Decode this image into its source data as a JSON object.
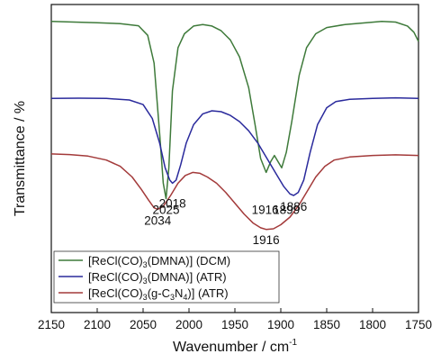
{
  "chart_data": {
    "type": "line",
    "xlabel": "Wavenumber / cm",
    "xlabel_sup": "-1",
    "ylabel": "Transmittance / %",
    "xlim": [
      2150,
      1750
    ],
    "x_reversed": true,
    "x_ticks": [
      2150,
      2100,
      2050,
      2000,
      1950,
      1900,
      1850,
      1800,
      1750
    ],
    "y_ticks_shown": false,
    "grid": false,
    "legend_position": "bottom-left",
    "colors": {
      "dcm": "#3e7a3a",
      "atr_dmna": "#2a2a9c",
      "atr_gc3n4": "#a33a3a"
    },
    "series": [
      {
        "key": "dcm",
        "legend": {
          "a": "[ReCl(CO)",
          "sub1": "3",
          "b": "(DMNA)] (DCM)"
        },
        "color": "#3e7a3a",
        "peaks": [
          2025,
          1916,
          1899
        ],
        "points": [
          [
            2150,
            0.945
          ],
          [
            2125,
            0.943
          ],
          [
            2100,
            0.941
          ],
          [
            2075,
            0.938
          ],
          [
            2055,
            0.931
          ],
          [
            2045,
            0.9
          ],
          [
            2038,
            0.81
          ],
          [
            2032,
            0.58
          ],
          [
            2028,
            0.42
          ],
          [
            2025,
            0.37
          ],
          [
            2022,
            0.47
          ],
          [
            2018,
            0.72
          ],
          [
            2012,
            0.86
          ],
          [
            2005,
            0.905
          ],
          [
            1995,
            0.93
          ],
          [
            1985,
            0.935
          ],
          [
            1975,
            0.93
          ],
          [
            1965,
            0.915
          ],
          [
            1955,
            0.885
          ],
          [
            1945,
            0.83
          ],
          [
            1935,
            0.73
          ],
          [
            1928,
            0.61
          ],
          [
            1922,
            0.5
          ],
          [
            1916,
            0.455
          ],
          [
            1911,
            0.49
          ],
          [
            1907,
            0.51
          ],
          [
            1903,
            0.49
          ],
          [
            1899,
            0.47
          ],
          [
            1894,
            0.52
          ],
          [
            1888,
            0.62
          ],
          [
            1880,
            0.77
          ],
          [
            1872,
            0.86
          ],
          [
            1862,
            0.905
          ],
          [
            1850,
            0.925
          ],
          [
            1830,
            0.935
          ],
          [
            1810,
            0.94
          ],
          [
            1790,
            0.945
          ],
          [
            1775,
            0.943
          ],
          [
            1762,
            0.93
          ],
          [
            1755,
            0.91
          ],
          [
            1750,
            0.88
          ]
        ]
      },
      {
        "key": "atr_dmna",
        "legend": {
          "a": "[ReCl(CO)",
          "sub1": "3",
          "b": "(DMNA)] (ATR)"
        },
        "color": "#2a2a9c",
        "peaks": [
          2018,
          1886
        ],
        "points": [
          [
            2150,
            0.695
          ],
          [
            2120,
            0.696
          ],
          [
            2090,
            0.695
          ],
          [
            2065,
            0.69
          ],
          [
            2050,
            0.675
          ],
          [
            2040,
            0.63
          ],
          [
            2032,
            0.55
          ],
          [
            2026,
            0.47
          ],
          [
            2021,
            0.43
          ],
          [
            2018,
            0.42
          ],
          [
            2014,
            0.43
          ],
          [
            2009,
            0.48
          ],
          [
            2003,
            0.55
          ],
          [
            1995,
            0.61
          ],
          [
            1985,
            0.645
          ],
          [
            1975,
            0.655
          ],
          [
            1965,
            0.652
          ],
          [
            1955,
            0.64
          ],
          [
            1945,
            0.62
          ],
          [
            1935,
            0.59
          ],
          [
            1925,
            0.55
          ],
          [
            1915,
            0.5
          ],
          [
            1905,
            0.45
          ],
          [
            1897,
            0.41
          ],
          [
            1890,
            0.385
          ],
          [
            1886,
            0.38
          ],
          [
            1881,
            0.39
          ],
          [
            1875,
            0.43
          ],
          [
            1868,
            0.52
          ],
          [
            1860,
            0.61
          ],
          [
            1850,
            0.665
          ],
          [
            1840,
            0.685
          ],
          [
            1825,
            0.692
          ],
          [
            1800,
            0.695
          ],
          [
            1775,
            0.697
          ],
          [
            1750,
            0.695
          ]
        ]
      },
      {
        "key": "atr_gc3n4",
        "legend": {
          "a": "[ReCl(CO)",
          "sub1": "3",
          "b": "(g-C",
          "sub2": "3",
          "c": "N",
          "sub3": "4",
          "d": ")] (ATR)"
        },
        "color": "#a33a3a",
        "peaks": [
          2034,
          1916
        ],
        "points": [
          [
            2150,
            0.515
          ],
          [
            2130,
            0.513
          ],
          [
            2110,
            0.508
          ],
          [
            2090,
            0.495
          ],
          [
            2075,
            0.475
          ],
          [
            2062,
            0.44
          ],
          [
            2052,
            0.4
          ],
          [
            2044,
            0.365
          ],
          [
            2038,
            0.34
          ],
          [
            2034,
            0.335
          ],
          [
            2028,
            0.345
          ],
          [
            2020,
            0.38
          ],
          [
            2012,
            0.42
          ],
          [
            2004,
            0.445
          ],
          [
            1996,
            0.455
          ],
          [
            1988,
            0.452
          ],
          [
            1980,
            0.44
          ],
          [
            1970,
            0.42
          ],
          [
            1960,
            0.39
          ],
          [
            1950,
            0.355
          ],
          [
            1940,
            0.32
          ],
          [
            1930,
            0.29
          ],
          [
            1922,
            0.275
          ],
          [
            1916,
            0.27
          ],
          [
            1908,
            0.272
          ],
          [
            1900,
            0.285
          ],
          [
            1890,
            0.31
          ],
          [
            1880,
            0.35
          ],
          [
            1870,
            0.4
          ],
          [
            1862,
            0.44
          ],
          [
            1852,
            0.475
          ],
          [
            1842,
            0.495
          ],
          [
            1825,
            0.505
          ],
          [
            1800,
            0.51
          ],
          [
            1775,
            0.512
          ],
          [
            1750,
            0.51
          ]
        ]
      }
    ],
    "annotations": [
      {
        "text": "2025",
        "x": 2025,
        "y": 0.32,
        "series": "dcm"
      },
      {
        "text": "1916",
        "x": 1917,
        "y": 0.32,
        "series": "dcm"
      },
      {
        "text": "1899",
        "x": 1894,
        "y": 0.32,
        "series": "dcm"
      },
      {
        "text": "2018",
        "x": 2018,
        "y": 0.34,
        "series": "atr_dmna"
      },
      {
        "text": "1886",
        "x": 1886,
        "y": 0.33,
        "series": "atr_dmna"
      },
      {
        "text": "2034",
        "x": 2034,
        "y": 0.285,
        "series": "atr_gc3n4"
      },
      {
        "text": "1916",
        "x": 1916,
        "y": 0.222,
        "series": "atr_gc3n4"
      }
    ]
  }
}
